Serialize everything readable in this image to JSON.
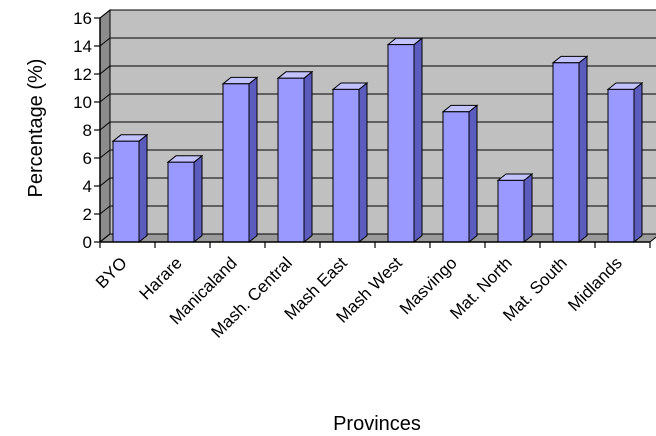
{
  "chart_data": {
    "type": "bar",
    "title": "",
    "xlabel": "Provinces",
    "ylabel": "Percentage (%)",
    "categories": [
      "BYO",
      "Harare",
      "Manicaland",
      "Mash. Central",
      "Mash East",
      "Mash West",
      "Masvingo",
      "Mat. North",
      "Mat. South",
      "Midlands"
    ],
    "values": [
      7.2,
      5.7,
      11.3,
      11.7,
      10.9,
      14.1,
      9.3,
      4.4,
      12.8,
      10.9
    ],
    "ylim": [
      0,
      16
    ],
    "yticks": [
      0,
      2,
      4,
      6,
      8,
      10,
      12,
      14,
      16
    ],
    "grid": true,
    "legend": "none",
    "style": "3d",
    "colors": {
      "bar_front": "#9999ff",
      "bar_top": "#c2c2ff",
      "bar_side": "#5c5cbf",
      "plot_back": "#c0c0c0",
      "plot_floor": "#9a9a9a",
      "plot_wall": "#8c8c8c"
    }
  }
}
